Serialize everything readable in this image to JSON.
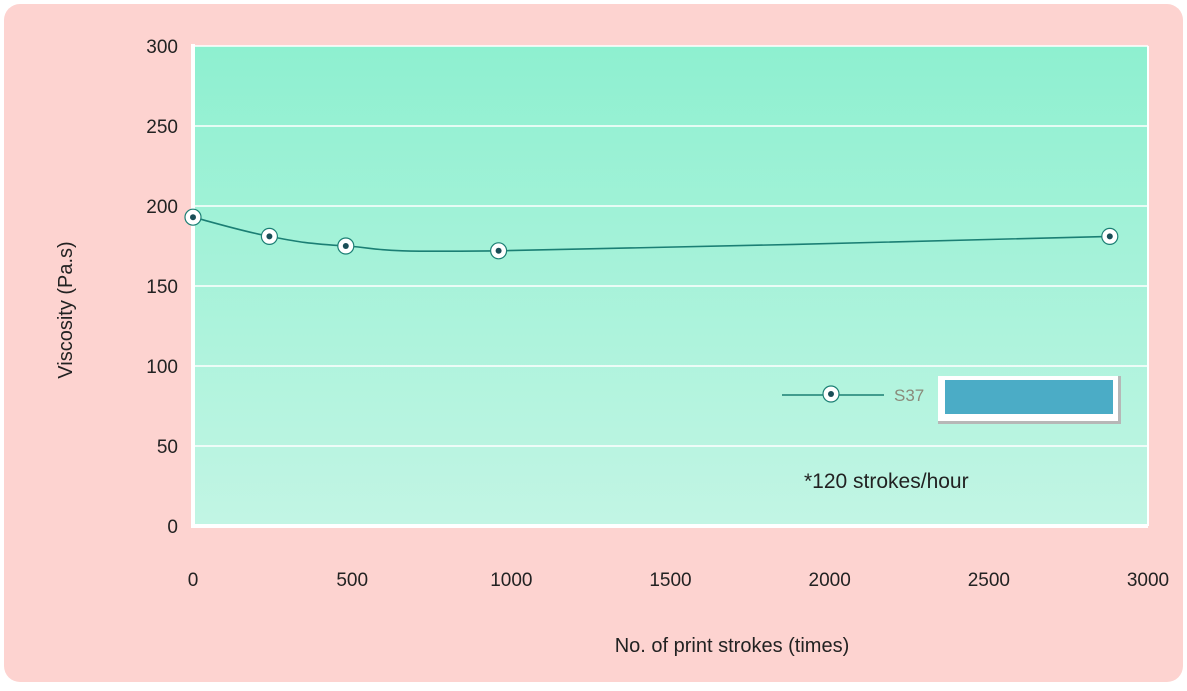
{
  "colors": {
    "background": "#fdd3d0",
    "plot_top": "#8ef0d0",
    "plot_bottom": "#c2f5e4",
    "line": "#1b7f74",
    "marker_fill": "#ffffff",
    "marker_center": "#1a4e57",
    "legend_box": "#4bacc6",
    "gridline": "#ffffff"
  },
  "chart_data": {
    "type": "line",
    "title": "",
    "xlabel": "No. of print strokes (times)",
    "ylabel": "Viscosity (Pa.s)",
    "xlim": [
      0,
      3000
    ],
    "ylim": [
      0,
      300
    ],
    "x_ticks": [
      "0",
      "500",
      "1000",
      "1500",
      "2000",
      "2500",
      "3000"
    ],
    "y_ticks": [
      "0",
      "50",
      "100",
      "150",
      "200",
      "250",
      "300"
    ],
    "grid": true,
    "legend_position": "lower-right",
    "series": [
      {
        "name": "S37",
        "x": [
          0,
          240,
          480,
          960,
          2880
        ],
        "y": [
          193,
          181,
          175,
          172,
          181
        ]
      }
    ],
    "annotations": [
      "*120 strokes/hour"
    ]
  }
}
